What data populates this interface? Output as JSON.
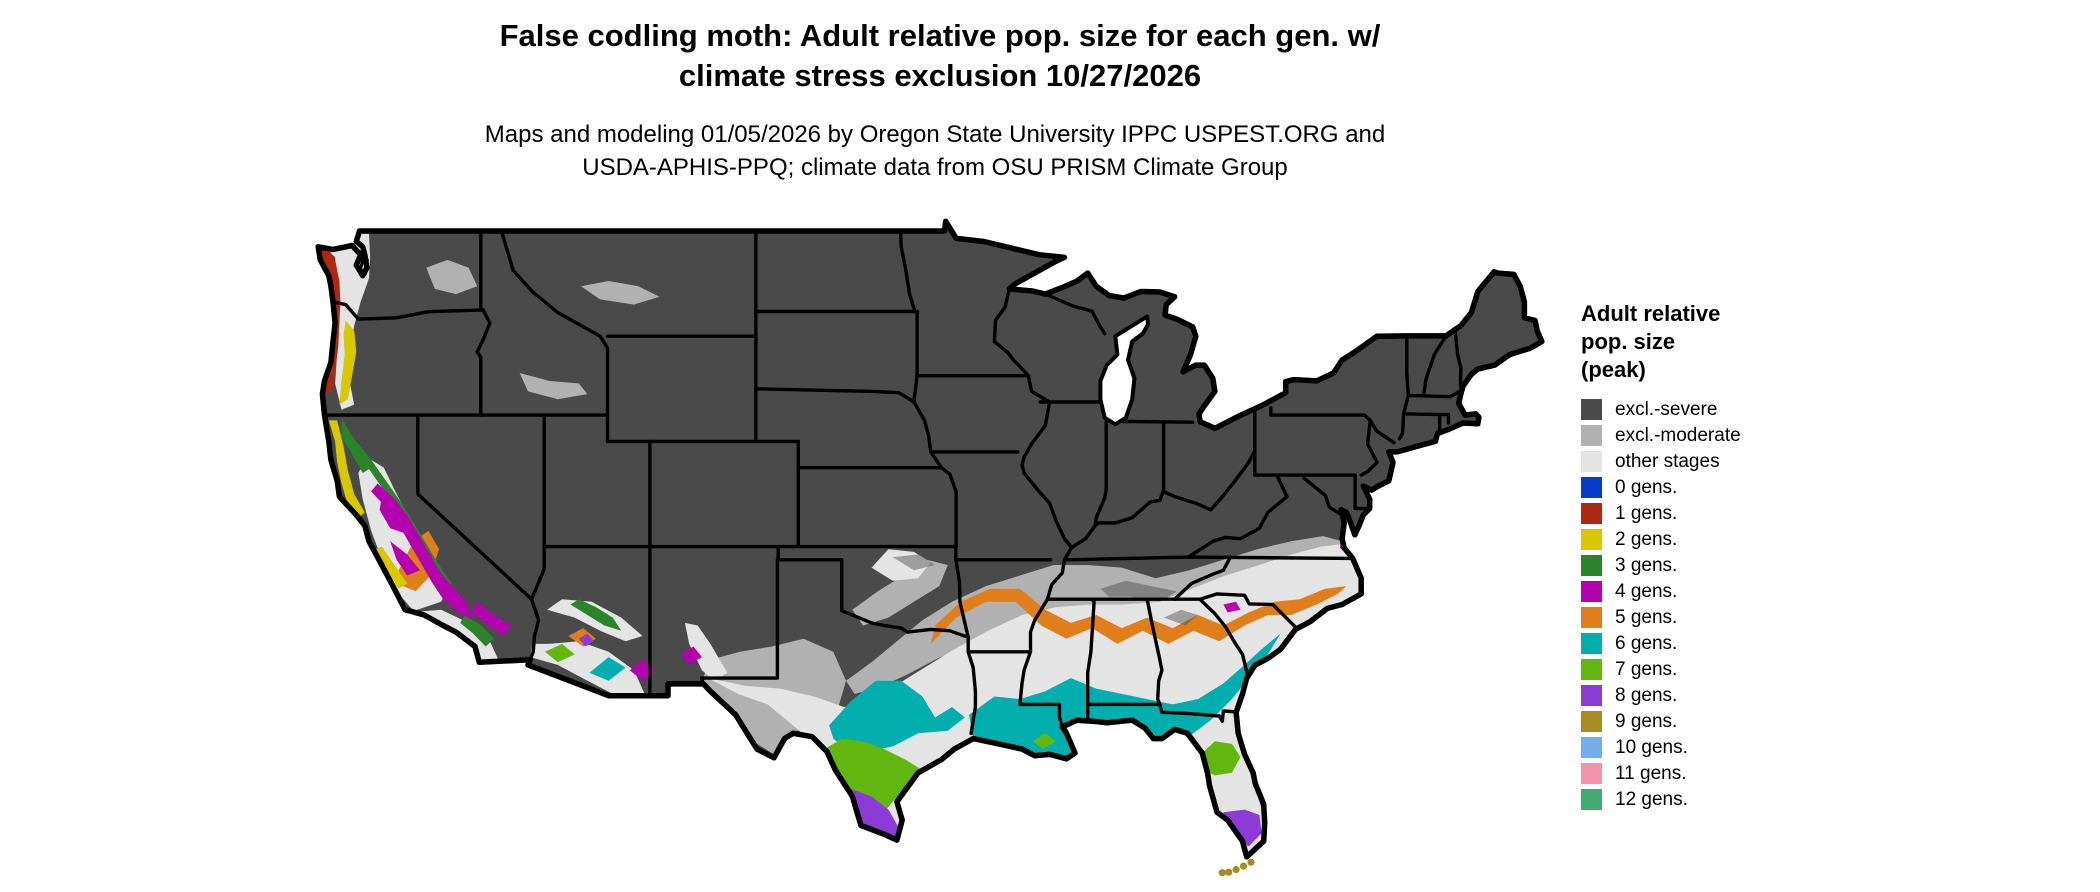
{
  "title": {
    "line1": "False codling moth: Adult relative pop. size for each gen. w/",
    "line2": "climate stress exclusion 10/27/2026"
  },
  "subtitle": {
    "line1": "Maps and modeling 01/05/2026 by Oregon State University IPPC USPEST.ORG and",
    "line2": "USDA-APHIS-PPQ; climate data from OSU PRISM Climate Group"
  },
  "legend": {
    "title_line1": "Adult relative",
    "title_line2": "pop. size",
    "title_line3": "(peak)",
    "items": [
      {
        "key": "excl_severe",
        "label": "excl.-severe",
        "color": "#4A4A4A"
      },
      {
        "key": "excl_moderate",
        "label": "excl.-moderate",
        "color": "#B1B1B1"
      },
      {
        "key": "other",
        "label": "other stages",
        "color": "#E4E4E4"
      },
      {
        "key": "g0",
        "label": "0 gens.",
        "color": "#0A3AC8"
      },
      {
        "key": "g1",
        "label": "1 gens.",
        "color": "#AF2912"
      },
      {
        "key": "g2",
        "label": "2 gens.",
        "color": "#D9C700"
      },
      {
        "key": "g3",
        "label": "3 gens.",
        "color": "#2B842B"
      },
      {
        "key": "g4",
        "label": "4 gens.",
        "color": "#B400AF"
      },
      {
        "key": "g5",
        "label": "5 gens.",
        "color": "#E07F19"
      },
      {
        "key": "g6",
        "label": "6 gens.",
        "color": "#00AEAE"
      },
      {
        "key": "g7",
        "label": "7 gens.",
        "color": "#62B70F"
      },
      {
        "key": "g8",
        "label": "8 gens.",
        "color": "#8C3BD6"
      },
      {
        "key": "g9",
        "label": "9 gens.",
        "color": "#A98B22"
      },
      {
        "key": "g10",
        "label": "10 gens.",
        "color": "#73AEEB"
      },
      {
        "key": "g11",
        "label": "11 gens.",
        "color": "#F293AB"
      },
      {
        "key": "g12",
        "label": "12 gens.",
        "color": "#3FAD72"
      }
    ]
  },
  "map": {
    "description": "Contiguous United States map of false codling moth adult relative population size (peak) generations with climate stress exclusion",
    "base_color": "#4A4A4A",
    "outline_color": "#000000",
    "water_color": "#FFFFFF",
    "regions_depicted": [
      {
        "area": "Northern, interior and northeastern US",
        "class": "excl.-severe"
      },
      {
        "area": "Mid-south band: west Texas, Oklahoma, Arkansas, Tennessee, Kentucky border, central Virginia",
        "class": "excl.-moderate"
      },
      {
        "area": "Deep South coastal plain, Florida, south Texas, California valleys, southern Arizona",
        "class": "other stages"
      },
      {
        "area": "Washington and Oregon coastline",
        "class": "1 gens."
      },
      {
        "area": "Willamette Valley and northern California coast",
        "class": "2 gens."
      },
      {
        "area": "California foothills, southern Arizona uplands",
        "class": "3 gens."
      },
      {
        "area": "Central and southern California, SW deserts, SE Virginia coast",
        "class": "4 gens."
      },
      {
        "area": "Arc through NE Texas–Arkansas, central Mississippi–Alabama–Georgia, Carolinas; San Joaquin Valley",
        "class": "5 gens."
      },
      {
        "area": "Gulf Coast belt from Texas to Florida panhandle and Georgia–South Carolina coast; central Texas arc",
        "class": "6 gens."
      },
      {
        "area": "South Texas plains, central Florida band, Phoenix area",
        "class": "7 gens."
      },
      {
        "area": "Rio Grande Valley of Texas and southern Florida",
        "class": "8 gens."
      },
      {
        "area": "Florida Keys",
        "class": "9 gens."
      }
    ]
  }
}
